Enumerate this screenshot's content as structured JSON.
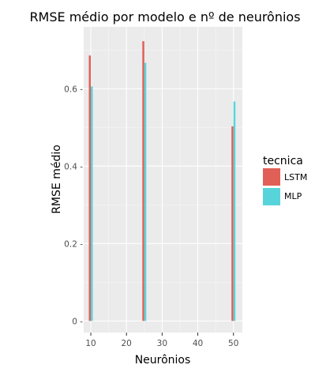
{
  "chart_data": {
    "type": "bar",
    "title": "RMSE médio por modelo e nº de neurônios",
    "xlabel": "Neurônios",
    "ylabel": "RMSE médio",
    "x_ticks": [
      10,
      20,
      30,
      40,
      50
    ],
    "y_ticks": [
      0,
      0.2,
      0.4,
      0.6
    ],
    "y_tick_labels": [
      "0 -",
      "0.2 -",
      "0.4 -",
      "0.6 -"
    ],
    "xlim": [
      8,
      52.5
    ],
    "ylim": [
      -0.03,
      0.76
    ],
    "categories": [
      10,
      25,
      50
    ],
    "series": [
      {
        "name": "LSTM",
        "color": "#e06057",
        "values": [
          0.686,
          0.723,
          0.503
        ]
      },
      {
        "name": "MLP",
        "color": "#57d4da",
        "values": [
          0.606,
          0.667,
          0.567
        ]
      }
    ],
    "legend": {
      "title": "tecnica",
      "position": "right"
    },
    "grid": true,
    "panel_background": "#ebebeb"
  }
}
